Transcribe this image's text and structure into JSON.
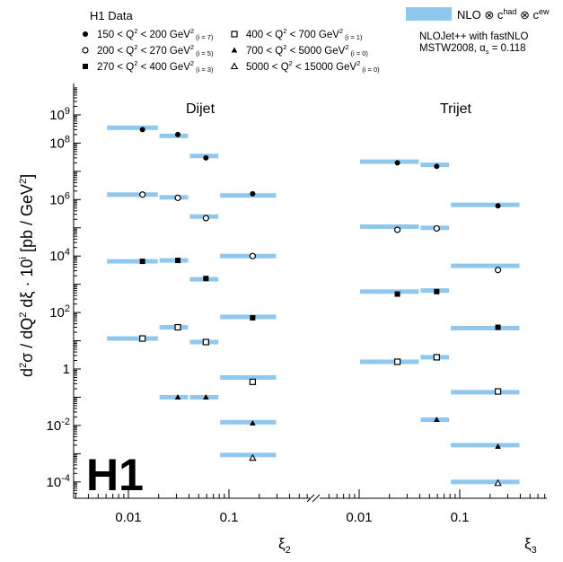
{
  "legend": {
    "header": "H1 Data",
    "bins": [
      {
        "label_pre": "150 < Q",
        "label_mid": " < 200 GeV",
        "tag": "(i = 7)",
        "marker": "filled-circle"
      },
      {
        "label_pre": "200 < Q",
        "label_mid": " < 270 GeV",
        "tag": "(i = 5)",
        "marker": "open-circle"
      },
      {
        "label_pre": "270 < Q",
        "label_mid": " < 400 GeV",
        "tag": "(i = 3)",
        "marker": "filled-square"
      },
      {
        "label_pre": "400 < Q",
        "label_mid": " < 700 GeV",
        "tag": "(i = 1)",
        "marker": "open-square"
      },
      {
        "label_pre": "700 < Q",
        "label_mid": " < 5000 GeV",
        "tag": "(i = 0)",
        "marker": "filled-triangle"
      },
      {
        "label_pre": "5000 < Q",
        "label_mid": " < 15000 GeV",
        "tag": "(i = 0)",
        "marker": "open-triangle"
      }
    ],
    "band_label_pre": "NLO ⊗ c",
    "band_label_sup1": "had",
    "band_label_mid": " ⊗ c",
    "band_label_sup2": "ew",
    "theory_line1": "NLOJet++ with fastNLO",
    "theory_line2_pre": "MSTW2008, α",
    "theory_line2_sub": "s",
    "theory_line2_post": " = 0.118",
    "sq": "2",
    "band_color": "#8ec8ee"
  },
  "logo": "H1",
  "ylabel_parts": {
    "d": "d",
    "sup2": "2",
    "mid1": "σ / dQ",
    "mid2": " dξ  · 10",
    "i": "i",
    "tail": " [pb / GeV",
    "close": "]"
  },
  "chart_data": [
    {
      "type": "scatter",
      "panel": "Dijet",
      "title": "Dijet",
      "xlabel": "ξ",
      "xlabel_sub": "2",
      "xscale": "log",
      "yscale": "log",
      "xlim": [
        0.0035,
        0.32
      ],
      "ylim": [
        4e-05,
        8000000000
      ],
      "xticks": [
        {
          "v": 0.01,
          "label": "0.01"
        },
        {
          "v": 0.1,
          "label": "0.1"
        }
      ],
      "x_edges": [
        0.006,
        0.02,
        0.04,
        0.08,
        0.3
      ],
      "series": [
        {
          "name": "150 < Q² < 200 GeV² (i = 7)",
          "marker": "filled-circle",
          "x": [
            0.0138,
            0.031,
            0.059,
            0.172
          ],
          "y": [
            300000000,
            200000000,
            30000000,
            null
          ],
          "theory": [
            350000000,
            180000000,
            35000000,
            null
          ]
        },
        {
          "name": "200 < Q² < 270 GeV² (i = 5)",
          "marker": "open-circle",
          "x": [
            0.0138,
            0.031,
            0.059,
            0.172
          ],
          "y": [
            1500000,
            1150000,
            220000,
            10000
          ],
          "theory": [
            1500000,
            1200000,
            250000,
            10000
          ]
        },
        {
          "name": "270 < Q² < 400 GeV² (i = 3)",
          "marker": "filled-square",
          "x": [
            0.0138,
            0.031,
            0.059,
            0.172
          ],
          "y": [
            6500,
            7000,
            1600,
            65
          ],
          "theory": [
            6500,
            7000,
            1500,
            70
          ]
        },
        {
          "name": "400 < Q² < 700 GeV² (i = 1)",
          "marker": "open-square",
          "x": [
            0.0138,
            0.031,
            0.059,
            0.172
          ],
          "y": [
            12,
            30,
            9,
            0.35
          ],
          "theory": [
            12,
            30,
            9,
            0.5
          ]
        },
        {
          "name": "700 < Q² < 5000 GeV² (i = 0)",
          "marker": "filled-triangle",
          "x": [
            0.031,
            0.059,
            0.172
          ],
          "y": [
            0.1,
            0.1,
            0.012
          ],
          "theory": [
            0.1,
            0.1,
            0.013
          ]
        },
        {
          "name": "5000 < Q² < 15000 GeV² (i = 0)",
          "marker": "open-triangle",
          "x": [
            0.172
          ],
          "y": [
            0.0007
          ],
          "theory": [
            0.0009
          ]
        }
      ],
      "extra_points": [
        {
          "marker": "filled-circle",
          "x": 0.172,
          "y": 1600000,
          "theory": 1400000
        }
      ]
    },
    {
      "type": "scatter",
      "panel": "Trijet",
      "title": "Trijet",
      "xlabel": "ξ",
      "xlabel_sub": "3",
      "xscale": "log",
      "yscale": "log",
      "xlim": [
        0.0035,
        0.6
      ],
      "ylim": [
        4e-05,
        8000000000
      ],
      "xticks": [
        {
          "v": 0.01,
          "label": "0.01"
        },
        {
          "v": 0.1,
          "label": "0.1"
        }
      ],
      "x_edges": [
        0.01,
        0.04,
        0.08,
        0.4
      ],
      "series": [
        {
          "name": "150 < Q² < 200 GeV² (i = 7)",
          "marker": "filled-circle",
          "x": [
            0.024,
            0.059,
            0.24
          ],
          "y": [
            20000000,
            15000000,
            600000
          ],
          "theory": [
            22000000,
            17000000,
            650000
          ]
        },
        {
          "name": "200 < Q² < 270 GeV² (i = 5)",
          "marker": "open-circle",
          "x": [
            0.024,
            0.059,
            0.24
          ],
          "y": [
            85000,
            95000,
            3200
          ],
          "theory": [
            110000,
            100000,
            4500
          ]
        },
        {
          "name": "270 < Q² < 400 GeV² (i = 3)",
          "marker": "filled-square",
          "x": [
            0.024,
            0.059,
            0.24
          ],
          "y": [
            450,
            550,
            30
          ],
          "theory": [
            550,
            600,
            28
          ]
        },
        {
          "name": "400 < Q² < 700 GeV² (i = 1)",
          "marker": "open-square",
          "x": [
            0.024,
            0.059,
            0.24
          ],
          "y": [
            1.8,
            2.6,
            0.16
          ],
          "theory": [
            1.8,
            2.6,
            0.15
          ]
        },
        {
          "name": "700 < Q² < 5000 GeV² (i = 0)",
          "marker": "filled-triangle",
          "x": [
            0.059,
            0.24
          ],
          "y": [
            0.016,
            0.0018
          ],
          "theory": [
            0.016,
            0.002
          ]
        },
        {
          "name": "5000 < Q² < 15000 GeV² (i = 0)",
          "marker": "open-triangle",
          "x": [
            0.24
          ],
          "y": [
            9e-05
          ],
          "theory": [
            0.0001
          ]
        }
      ]
    }
  ],
  "yticks": [
    {
      "v": 1000000000,
      "base": "10",
      "exp": "9"
    },
    {
      "v": 100000000,
      "base": "10",
      "exp": "8"
    },
    {
      "v": 1000000,
      "base": "10",
      "exp": "6"
    },
    {
      "v": 10000,
      "base": "10",
      "exp": "4"
    },
    {
      "v": 100,
      "base": "10",
      "exp": "2"
    },
    {
      "v": 1,
      "base": "1",
      "exp": ""
    },
    {
      "v": 0.01,
      "base": "10",
      "exp": "-2"
    },
    {
      "v": 0.0001,
      "base": "10",
      "exp": "-4"
    }
  ]
}
